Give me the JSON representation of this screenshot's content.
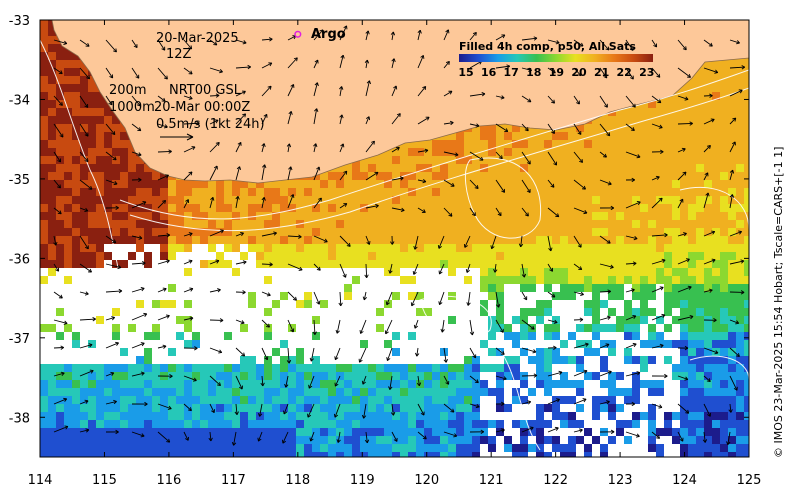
{
  "map": {
    "date": "20-Mar-2025",
    "hour": "12Z",
    "depth_label_1": "200m",
    "depth_label_2": "1000m",
    "product": "NRT00 GSL",
    "product_time": "20-Mar 00:00Z",
    "scale_label": "0.5m/s (1kt 24h)",
    "argo_label": "Argo",
    "credit": "© IMOS 23-Mar-2025 15:54 Hobart; Tscale=CARS+[-1 1]",
    "lon_range": [
      114,
      125
    ],
    "lat_range": [
      -38.5,
      -33
    ],
    "lon_ticks": [
      "114",
      "115",
      "116",
      "117",
      "118",
      "119",
      "120",
      "121",
      "122",
      "123",
      "124",
      "125"
    ],
    "lat_ticks": [
      "-33",
      "-34",
      "-35",
      "-36",
      "-37",
      "-38"
    ],
    "argo_float": {
      "lon": 118.0,
      "lat": -33.18
    }
  },
  "legend": {
    "title": "Filled 4h comp, p50, All Sats",
    "ticks": [
      "15",
      "16",
      "17",
      "18",
      "19",
      "20",
      "21",
      "22",
      "23"
    ],
    "colors": [
      "#1c1c8c",
      "#1f4fd0",
      "#1a9ce8",
      "#26c8b8",
      "#38c050",
      "#8cd830",
      "#e8e020",
      "#f0b020",
      "#e87818",
      "#c84a10",
      "#8a2010"
    ]
  },
  "colors": {
    "land": "#fdc899",
    "coast": "#8a6a4a"
  }
}
